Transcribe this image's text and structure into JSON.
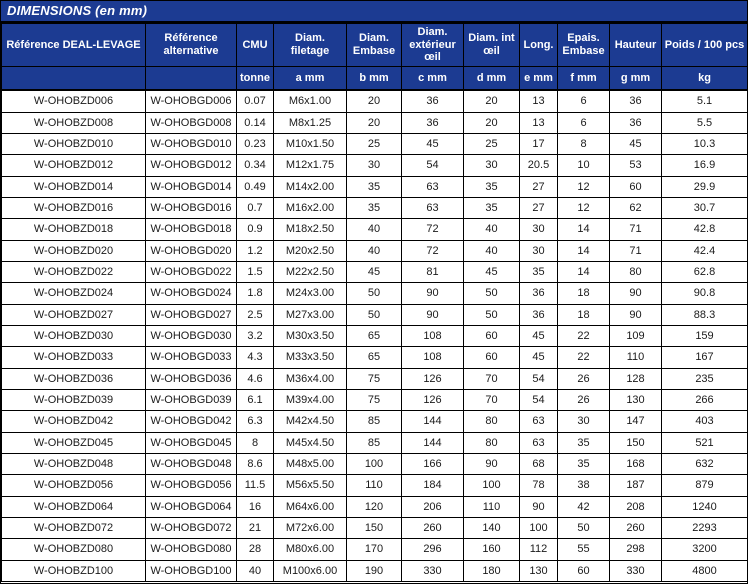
{
  "title": "DIMENSIONS (en mm)",
  "colors": {
    "header_blue": "#1c3b92",
    "border_black": "#000000",
    "row_background": "#ffffff",
    "header_text": "#ffffff",
    "body_text": "#1a1a1a"
  },
  "table": {
    "columns": [
      {
        "label": "Référence DEAL-LEVAGE",
        "sub": ""
      },
      {
        "label": "Référence alternative",
        "sub": ""
      },
      {
        "label": "CMU",
        "sub": "tonne"
      },
      {
        "label": "Diam. filetage",
        "sub": "a mm"
      },
      {
        "label": "Diam. Embase",
        "sub": "b mm"
      },
      {
        "label": "Diam. extérieur œil",
        "sub": "c mm"
      },
      {
        "label": "Diam. int œil",
        "sub": "d mm"
      },
      {
        "label": "Long.",
        "sub": "e mm"
      },
      {
        "label": "Epais. Embase",
        "sub": "f mm"
      },
      {
        "label": "Hauteur",
        "sub": "g mm"
      },
      {
        "label": "Poids / 100 pcs",
        "sub": "kg"
      }
    ],
    "rows": [
      [
        "W-OHOBZD006",
        "W-OHOBGD006",
        "0.07",
        "M6x1.00",
        "20",
        "36",
        "20",
        "13",
        "6",
        "36",
        "5.1"
      ],
      [
        "W-OHOBZD008",
        "W-OHOBGD008",
        "0.14",
        "M8x1.25",
        "20",
        "36",
        "20",
        "13",
        "6",
        "36",
        "5.5"
      ],
      [
        "W-OHOBZD010",
        "W-OHOBGD010",
        "0.23",
        "M10x1.50",
        "25",
        "45",
        "25",
        "17",
        "8",
        "45",
        "10.3"
      ],
      [
        "W-OHOBZD012",
        "W-OHOBGD012",
        "0.34",
        "M12x1.75",
        "30",
        "54",
        "30",
        "20.5",
        "10",
        "53",
        "16.9"
      ],
      [
        "W-OHOBZD014",
        "W-OHOBGD014",
        "0.49",
        "M14x2.00",
        "35",
        "63",
        "35",
        "27",
        "12",
        "60",
        "29.9"
      ],
      [
        "W-OHOBZD016",
        "W-OHOBGD016",
        "0.7",
        "M16x2.00",
        "35",
        "63",
        "35",
        "27",
        "12",
        "62",
        "30.7"
      ],
      [
        "W-OHOBZD018",
        "W-OHOBGD018",
        "0.9",
        "M18x2.50",
        "40",
        "72",
        "40",
        "30",
        "14",
        "71",
        "42.8"
      ],
      [
        "W-OHOBZD020",
        "W-OHOBGD020",
        "1.2",
        "M20x2.50",
        "40",
        "72",
        "40",
        "30",
        "14",
        "71",
        "42.4"
      ],
      [
        "W-OHOBZD022",
        "W-OHOBGD022",
        "1.5",
        "M22x2.50",
        "45",
        "81",
        "45",
        "35",
        "14",
        "80",
        "62.8"
      ],
      [
        "W-OHOBZD024",
        "W-OHOBGD024",
        "1.8",
        "M24x3.00",
        "50",
        "90",
        "50",
        "36",
        "18",
        "90",
        "90.8"
      ],
      [
        "W-OHOBZD027",
        "W-OHOBGD027",
        "2.5",
        "M27x3.00",
        "50",
        "90",
        "50",
        "36",
        "18",
        "90",
        "88.3"
      ],
      [
        "W-OHOBZD030",
        "W-OHOBGD030",
        "3.2",
        "M30x3.50",
        "65",
        "108",
        "60",
        "45",
        "22",
        "109",
        "159"
      ],
      [
        "W-OHOBZD033",
        "W-OHOBGD033",
        "4.3",
        "M33x3.50",
        "65",
        "108",
        "60",
        "45",
        "22",
        "110",
        "167"
      ],
      [
        "W-OHOBZD036",
        "W-OHOBGD036",
        "4.6",
        "M36x4.00",
        "75",
        "126",
        "70",
        "54",
        "26",
        "128",
        "235"
      ],
      [
        "W-OHOBZD039",
        "W-OHOBGD039",
        "6.1",
        "M39x4.00",
        "75",
        "126",
        "70",
        "54",
        "26",
        "130",
        "266"
      ],
      [
        "W-OHOBZD042",
        "W-OHOBGD042",
        "6.3",
        "M42x4.50",
        "85",
        "144",
        "80",
        "63",
        "30",
        "147",
        "403"
      ],
      [
        "W-OHOBZD045",
        "W-OHOBGD045",
        "8",
        "M45x4.50",
        "85",
        "144",
        "80",
        "63",
        "35",
        "150",
        "521"
      ],
      [
        "W-OHOBZD048",
        "W-OHOBGD048",
        "8.6",
        "M48x5.00",
        "100",
        "166",
        "90",
        "68",
        "35",
        "168",
        "632"
      ],
      [
        "W-OHOBZD056",
        "W-OHOBGD056",
        "11.5",
        "M56x5.50",
        "110",
        "184",
        "100",
        "78",
        "38",
        "187",
        "879"
      ],
      [
        "W-OHOBZD064",
        "W-OHOBGD064",
        "16",
        "M64x6.00",
        "120",
        "206",
        "110",
        "90",
        "42",
        "208",
        "1240"
      ],
      [
        "W-OHOBZD072",
        "W-OHOBGD072",
        "21",
        "M72x6.00",
        "150",
        "260",
        "140",
        "100",
        "50",
        "260",
        "2293"
      ],
      [
        "W-OHOBZD080",
        "W-OHOBGD080",
        "28",
        "M80x6.00",
        "170",
        "296",
        "160",
        "112",
        "55",
        "298",
        "3200"
      ],
      [
        "W-OHOBZD100",
        "W-OHOBGD100",
        "40",
        "M100x6.00",
        "190",
        "330",
        "180",
        "130",
        "60",
        "330",
        "4800"
      ]
    ]
  }
}
